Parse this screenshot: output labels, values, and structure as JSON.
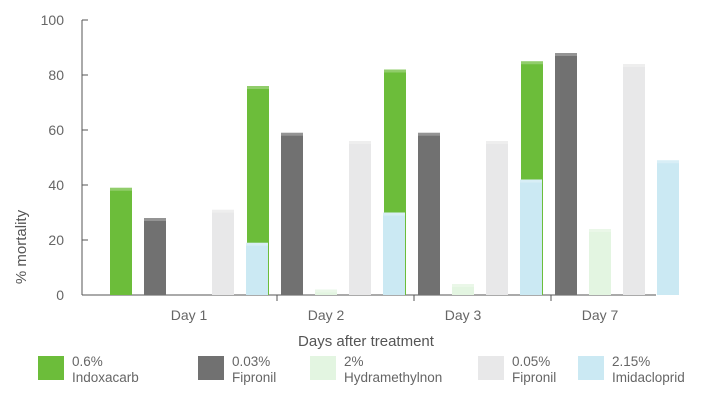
{
  "chart_data": {
    "type": "bar",
    "title": "",
    "xlabel": "Days after treatment",
    "ylabel": "% mortality",
    "categories": [
      "Day 1",
      "Day 2",
      "Day 3",
      "Day 7"
    ],
    "ylim": [
      0,
      100
    ],
    "yticks": [
      0,
      20,
      40,
      60,
      80,
      100
    ],
    "grid": false,
    "legend_position": "bottom",
    "series": [
      {
        "name_line1": "0.6%",
        "name_line2": "Indoxacarb",
        "color": "#6cbd3a",
        "values": [
          39,
          76,
          82,
          85
        ]
      },
      {
        "name_line1": "0.03%",
        "name_line2": "Fipronil",
        "color": "#717171",
        "values": [
          28,
          59,
          59,
          88
        ]
      },
      {
        "name_line1": "2%",
        "name_line2": "Hydramethylnon",
        "color": "#e3f5e1",
        "values": [
          0,
          2,
          4,
          24
        ]
      },
      {
        "name_line1": "0.05%",
        "name_line2": "Fipronil",
        "color": "#e8e8e9",
        "values": [
          31,
          56,
          56,
          84
        ]
      },
      {
        "name_line1": "2.15%",
        "name_line2": "Imidacloprid",
        "color": "#cbe9f3",
        "values": [
          19,
          30,
          42,
          49
        ]
      }
    ]
  }
}
